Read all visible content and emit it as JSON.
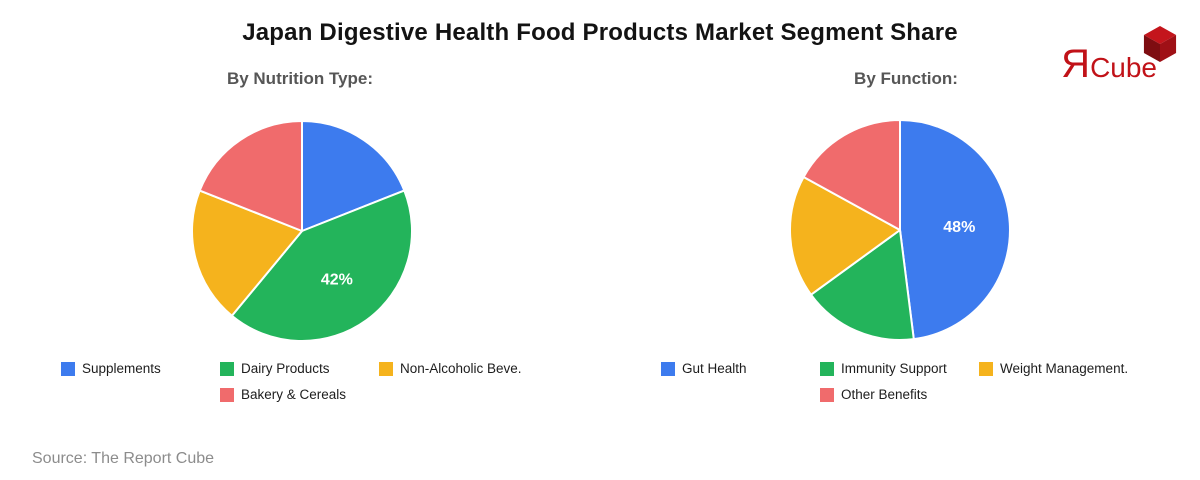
{
  "page": {
    "title": "Japan Digestive Health Food Products Market Segment Share",
    "source": "Source: The Report Cube",
    "background": "#FFFFFF"
  },
  "logo": {
    "mark": "Я",
    "name": "Cube",
    "color": "#C11218",
    "cube_icon": "red-3d-cube",
    "cube_colors": {
      "top": "#C4151C",
      "left": "#7E0D11",
      "right": "#9F1016"
    }
  },
  "chart_data": [
    {
      "type": "pie",
      "title": "By Nutrition Type:",
      "labels": [
        "Supplements",
        "Dairy Products",
        "Non-Alcoholic Beve.",
        "Bakery & Cereals"
      ],
      "values": [
        19,
        42,
        20,
        19
      ],
      "display_labels": [
        "",
        "42%",
        "",
        ""
      ],
      "colors": [
        "#3D7BEE",
        "#23B45B",
        "#F5B31D",
        "#F06B6C"
      ],
      "label_color": "#FFFFFF",
      "start_angle_deg": 0,
      "direction": "clockwise",
      "legend_position": "bottom"
    },
    {
      "type": "pie",
      "title": "By Function:",
      "labels": [
        "Gut Health",
        "Immunity Support",
        "Weight Management.",
        "Other Benefits"
      ],
      "values": [
        48,
        17,
        18,
        17
      ],
      "display_labels": [
        "48%",
        "",
        "",
        ""
      ],
      "colors": [
        "#3D7BEE",
        "#23B45B",
        "#F5B31D",
        "#F06B6C"
      ],
      "label_color": "#FFFFFF",
      "start_angle_deg": 0,
      "direction": "clockwise",
      "legend_position": "bottom"
    }
  ]
}
